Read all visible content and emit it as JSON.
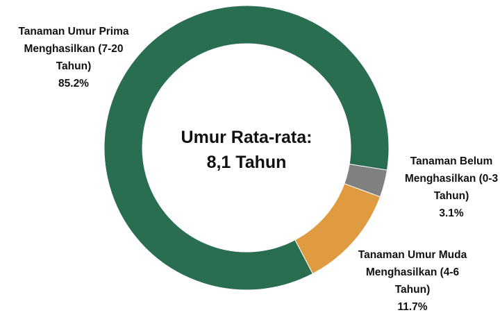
{
  "chart_data": {
    "type": "donut",
    "categories": [
      "Tanaman Belum Menghasilkan (0-3 Tahun)",
      "Tanaman Umur Muda Menghasilkan (4-6 Tahun)",
      "Tanaman Umur Prima Menghasilkan (7-20 Tahun)"
    ],
    "values": [
      3.1,
      11.7,
      85.2
    ],
    "value_labels": [
      "3.1%",
      "11.7%",
      "85.2%"
    ],
    "colors": [
      "#808080",
      "#e09a40",
      "#2a6e52"
    ],
    "annotations": [
      "Umur Rata-rata:",
      "8,1 Tahun"
    ]
  }
}
